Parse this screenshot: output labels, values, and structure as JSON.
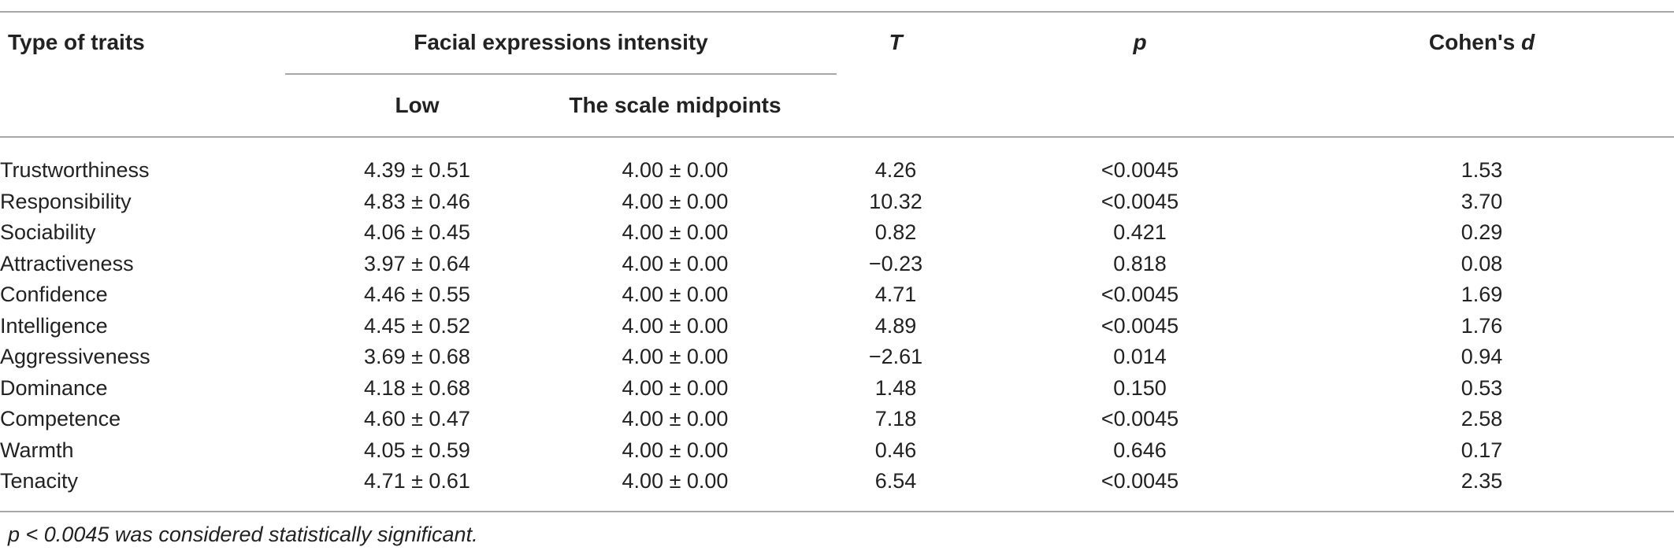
{
  "table": {
    "headers": {
      "type_of_traits": "Type of traits",
      "facial_expressions_intensity": "Facial expressions intensity",
      "low": "Low",
      "scale_midpoints": "The scale midpoints",
      "t": "T",
      "p": "p",
      "cohens_d_prefix": "Cohen's ",
      "cohens_d_symbol": "d"
    },
    "rows": [
      {
        "trait": "Trustworthiness",
        "low": "4.39 ± 0.51",
        "midpoint": "4.00 ± 0.00",
        "t": "4.26",
        "p": "<0.0045",
        "d": "1.53"
      },
      {
        "trait": "Responsibility",
        "low": "4.83 ± 0.46",
        "midpoint": "4.00 ± 0.00",
        "t": "10.32",
        "p": "<0.0045",
        "d": "3.70"
      },
      {
        "trait": "Sociability",
        "low": "4.06 ± 0.45",
        "midpoint": "4.00 ± 0.00",
        "t": "0.82",
        "p": "0.421",
        "d": "0.29"
      },
      {
        "trait": "Attractiveness",
        "low": "3.97 ± 0.64",
        "midpoint": "4.00 ± 0.00",
        "t": "−0.23",
        "p": "0.818",
        "d": "0.08"
      },
      {
        "trait": "Confidence",
        "low": "4.46 ± 0.55",
        "midpoint": "4.00 ± 0.00",
        "t": "4.71",
        "p": "<0.0045",
        "d": "1.69"
      },
      {
        "trait": "Intelligence",
        "low": "4.45 ± 0.52",
        "midpoint": "4.00 ± 0.00",
        "t": "4.89",
        "p": "<0.0045",
        "d": "1.76"
      },
      {
        "trait": "Aggressiveness",
        "low": "3.69 ± 0.68",
        "midpoint": "4.00 ± 0.00",
        "t": "−2.61",
        "p": "0.014",
        "d": "0.94"
      },
      {
        "trait": "Dominance",
        "low": "4.18 ± 0.68",
        "midpoint": "4.00 ± 0.00",
        "t": "1.48",
        "p": "0.150",
        "d": "0.53"
      },
      {
        "trait": "Competence",
        "low": "4.60 ± 0.47",
        "midpoint": "4.00 ± 0.00",
        "t": "7.18",
        "p": "<0.0045",
        "d": "2.58"
      },
      {
        "trait": "Warmth",
        "low": "4.05 ± 0.59",
        "midpoint": "4.00 ± 0.00",
        "t": "0.46",
        "p": "0.646",
        "d": "0.17"
      },
      {
        "trait": "Tenacity",
        "low": "4.71 ± 0.61",
        "midpoint": "4.00 ± 0.00",
        "t": "6.54",
        "p": "<0.0045",
        "d": "2.35"
      }
    ],
    "footnote": "p < 0.0045 was considered statistically significant."
  }
}
